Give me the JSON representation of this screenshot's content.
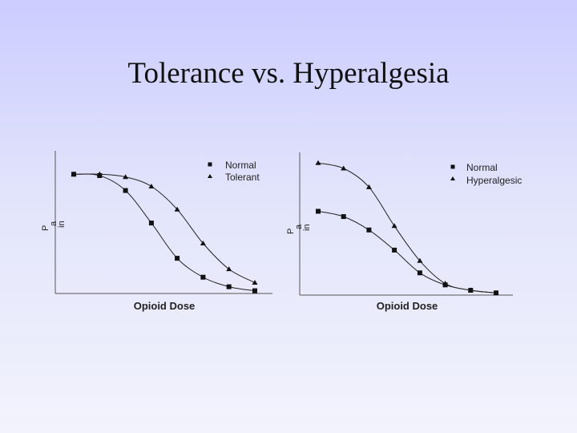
{
  "slide": {
    "title": "Tolerance vs. Hyperalgesia"
  },
  "chart_data": [
    {
      "type": "scatter",
      "xlabel": "Opioid Dose",
      "ylabel": "Pain",
      "legend_position": "top-right",
      "x": [
        1,
        2,
        3,
        4,
        5,
        6,
        7,
        8
      ],
      "series": [
        {
          "name": "Normal",
          "marker": "square",
          "values": [
            0.88,
            0.87,
            0.76,
            0.52,
            0.26,
            0.12,
            0.05,
            0.02
          ]
        },
        {
          "name": "Tolerant",
          "marker": "triangle",
          "values": [
            0.88,
            0.88,
            0.86,
            0.79,
            0.62,
            0.37,
            0.18,
            0.08
          ]
        }
      ]
    },
    {
      "type": "scatter",
      "xlabel": "Opioid Dose",
      "ylabel": "Pain",
      "legend_position": "top-right",
      "x": [
        1,
        2,
        3,
        4,
        5,
        6,
        7,
        8
      ],
      "series": [
        {
          "name": "Normal",
          "marker": "square",
          "values": [
            0.62,
            0.58,
            0.48,
            0.33,
            0.16,
            0.07,
            0.03,
            0.01
          ]
        },
        {
          "name": "Hyperalgesic",
          "marker": "triangle",
          "values": [
            0.98,
            0.94,
            0.8,
            0.51,
            0.25,
            0.08,
            0.03,
            0.01
          ]
        }
      ]
    }
  ]
}
